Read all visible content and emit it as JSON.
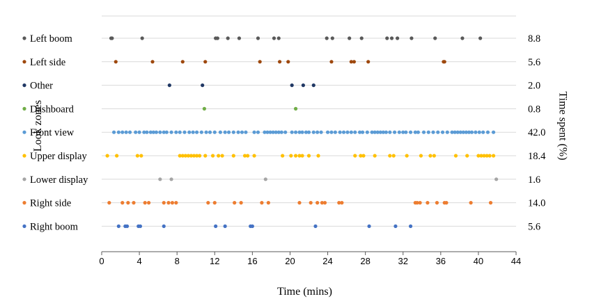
{
  "chart_data": {
    "type": "scatter",
    "xlabel": "Time (mins)",
    "ylabel": "Look zones",
    "y2label": "Time spent (%)",
    "xlim": [
      0,
      44
    ],
    "xticks": [
      "0",
      "4",
      "8",
      "12",
      "16",
      "20",
      "24",
      "28",
      "32",
      "36",
      "40",
      "44"
    ],
    "grid": "horizontal",
    "legend": "left",
    "series": [
      {
        "name": "Left boom",
        "color": "#595959",
        "time_spent": "8.8",
        "x": [
          1.0,
          1.1,
          4.3,
          12.1,
          12.3,
          13.4,
          14.6,
          16.6,
          18.3,
          18.8,
          23.9,
          24.5,
          26.3,
          27.6,
          30.3,
          30.8,
          31.4,
          32.9,
          35.4,
          38.3,
          40.2
        ]
      },
      {
        "name": "Left side",
        "color": "#9E480E",
        "time_spent": "5.6",
        "x": [
          1.5,
          5.4,
          8.6,
          11.0,
          16.8,
          18.9,
          19.8,
          24.4,
          26.5,
          26.8,
          28.3,
          36.3,
          36.4
        ]
      },
      {
        "name": "Other",
        "color": "#203864",
        "time_spent": "2.0",
        "x": [
          7.2,
          10.7,
          20.2,
          21.4,
          22.5
        ]
      },
      {
        "name": "Dashboard",
        "color": "#70AD47",
        "time_spent": "0.8",
        "x": [
          10.9,
          20.6
        ]
      },
      {
        "name": "Front view",
        "color": "#5B9BD5",
        "time_spent": "42.0",
        "x": [
          1.3,
          1.8,
          2.2,
          2.6,
          3.0,
          3.6,
          4.0,
          4.5,
          4.8,
          5.2,
          5.5,
          5.8,
          6.2,
          6.6,
          6.9,
          7.4,
          7.9,
          8.3,
          8.8,
          9.3,
          9.7,
          10.1,
          10.6,
          11.1,
          11.5,
          12.0,
          12.6,
          13.1,
          13.5,
          14.0,
          14.5,
          14.9,
          15.3,
          16.2,
          16.6,
          17.3,
          17.6,
          17.9,
          18.2,
          18.5,
          18.8,
          19.1,
          19.5,
          20.2,
          20.6,
          21.0,
          21.3,
          21.7,
          22.0,
          22.5,
          22.9,
          23.3,
          24.0,
          24.4,
          24.8,
          25.3,
          25.7,
          26.1,
          26.5,
          26.9,
          27.4,
          27.7,
          28.2,
          28.7,
          29.0,
          29.3,
          29.6,
          29.9,
          30.2,
          30.6,
          31.1,
          31.6,
          32.0,
          32.3,
          32.8,
          33.3,
          33.6,
          34.2,
          34.7,
          35.2,
          35.7,
          36.2,
          36.7,
          37.2,
          37.5,
          37.8,
          38.1,
          38.4,
          38.7,
          39.0,
          39.3,
          39.7,
          40.1,
          40.5,
          41.0,
          41.6
        ]
      },
      {
        "name": "Upper display",
        "color": "#FFC000",
        "time_spent": "18.4",
        "x": [
          0.6,
          1.6,
          3.8,
          4.2,
          8.3,
          8.6,
          8.9,
          9.2,
          9.5,
          9.8,
          10.1,
          10.4,
          11.0,
          11.8,
          12.4,
          12.8,
          14.0,
          15.2,
          15.5,
          16.2,
          19.2,
          20.1,
          20.6,
          21.0,
          21.3,
          22.0,
          23.0,
          26.9,
          27.5,
          27.8,
          29.0,
          30.6,
          31.0,
          32.4,
          33.9,
          34.9,
          35.3,
          37.6,
          38.8,
          40.0,
          40.3,
          40.6,
          40.9,
          41.2,
          41.6
        ]
      },
      {
        "name": "Lower display",
        "color": "#A5A5A5",
        "time_spent": "1.6",
        "x": [
          6.2,
          7.4,
          17.4,
          41.9
        ]
      },
      {
        "name": "Right side",
        "color": "#ED7D31",
        "time_spent": "14.0",
        "x": [
          0.8,
          2.2,
          2.8,
          3.4,
          4.6,
          5.0,
          6.6,
          7.1,
          7.5,
          7.9,
          11.3,
          12.0,
          14.1,
          14.8,
          17.0,
          17.7,
          21.0,
          22.2,
          22.9,
          23.4,
          23.7,
          25.2,
          25.5,
          33.3,
          33.5,
          33.8,
          34.6,
          35.6,
          36.4,
          36.6,
          39.2,
          41.3
        ]
      },
      {
        "name": "Right boom",
        "color": "#4472C4",
        "time_spent": "5.6",
        "x": [
          1.8,
          2.5,
          2.7,
          3.9,
          4.1,
          6.6,
          12.1,
          13.1,
          15.8,
          16.0,
          22.7,
          28.4,
          31.2,
          32.8
        ]
      }
    ]
  }
}
